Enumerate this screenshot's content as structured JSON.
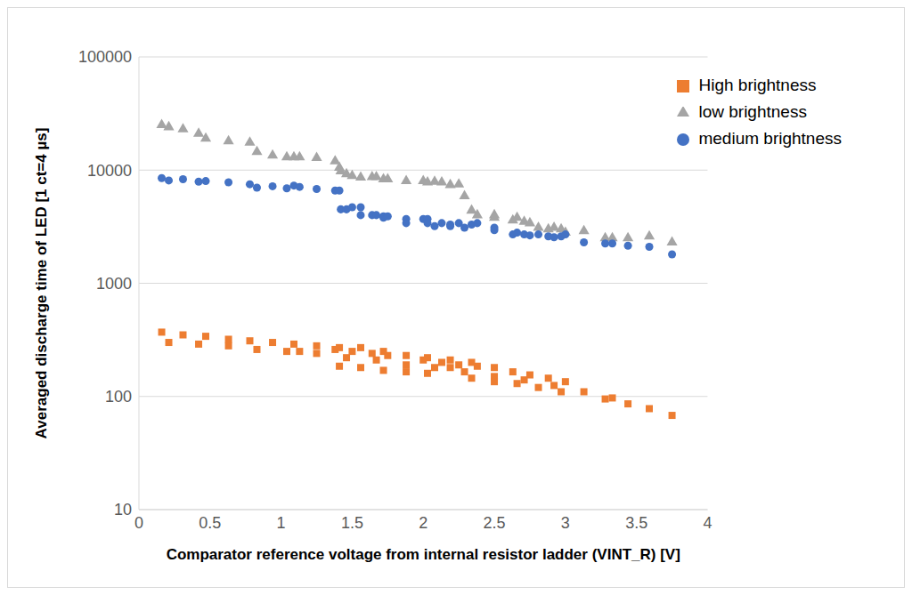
{
  "chart_data": {
    "type": "scatter",
    "x_label": "Comparator reference voltage from internal resistor ladder (VINT_R) [V]",
    "y_label": "Averaged discharge time of LED [1 ct=4 µs]",
    "xlim": [
      0,
      4
    ],
    "xticks": [
      0,
      0.5,
      1,
      1.5,
      2,
      2.5,
      3,
      3.5,
      4
    ],
    "ylim": [
      10,
      100000
    ],
    "yticks": [
      10,
      100,
      1000,
      10000,
      100000
    ],
    "log": "y",
    "grid": true,
    "legend": "upper right",
    "series": [
      {
        "name": "low brightness",
        "color": "#a5a5a5",
        "marker": "triangle",
        "x": [
          0.16,
          0.21,
          0.31,
          0.42,
          0.47,
          0.63,
          0.78,
          0.83,
          0.94,
          1.04,
          1.09,
          1.13,
          1.25,
          1.38,
          1.41,
          1.42,
          1.46,
          1.5,
          1.56,
          1.64,
          1.67,
          1.72,
          1.75,
          1.88,
          2.0,
          2.03,
          2.08,
          2.13,
          2.19,
          2.25,
          2.29,
          2.34,
          2.38,
          2.5,
          2.5,
          2.63,
          2.66,
          2.71,
          2.75,
          2.81,
          2.88,
          2.92,
          2.97,
          3.0,
          3.13,
          3.28,
          3.33,
          3.44,
          3.59,
          3.75
        ],
        "values": [
          25000,
          24000,
          23000,
          21000,
          19000,
          18000,
          17500,
          14500,
          13500,
          13000,
          13000,
          13000,
          12800,
          12000,
          10500,
          9800,
          9200,
          8900,
          8600,
          8700,
          8700,
          8300,
          8300,
          8000,
          8000,
          7800,
          7900,
          7800,
          7400,
          7500,
          5900,
          4400,
          4000,
          4000,
          3800,
          3600,
          3800,
          3500,
          3400,
          3100,
          3000,
          3100,
          3000,
          2800,
          2900,
          2500,
          2500,
          2500,
          2600,
          2300
        ]
      },
      {
        "name": "medium brightness",
        "color": "#4472c4",
        "marker": "circle",
        "x": [
          0.16,
          0.21,
          0.31,
          0.42,
          0.47,
          0.63,
          0.78,
          0.83,
          0.94,
          1.04,
          1.09,
          1.13,
          1.25,
          1.38,
          1.41,
          1.42,
          1.46,
          1.5,
          1.56,
          1.56,
          1.64,
          1.67,
          1.72,
          1.72,
          1.75,
          1.88,
          1.88,
          2.0,
          2.03,
          2.03,
          2.08,
          2.13,
          2.19,
          2.19,
          2.25,
          2.29,
          2.34,
          2.38,
          2.5,
          2.5,
          2.63,
          2.66,
          2.71,
          2.75,
          2.81,
          2.88,
          2.92,
          2.97,
          3.0,
          3.13,
          3.28,
          3.33,
          3.44,
          3.59,
          3.75
        ],
        "values": [
          8500,
          8100,
          8300,
          7900,
          8000,
          7800,
          7500,
          7000,
          7200,
          6900,
          7300,
          7100,
          6800,
          6600,
          6600,
          4500,
          4500,
          4700,
          4700,
          4000,
          4000,
          4000,
          3900,
          3800,
          3900,
          3700,
          3400,
          3700,
          3700,
          3400,
          3200,
          3400,
          3200,
          3300,
          3400,
          3100,
          3300,
          3400,
          3100,
          2950,
          2700,
          2800,
          2700,
          2650,
          2700,
          2600,
          2550,
          2600,
          2700,
          2300,
          2250,
          2250,
          2150,
          2100,
          1800
        ]
      },
      {
        "name": "High brightness",
        "color": "#ed7d31",
        "marker": "square",
        "x": [
          0.16,
          0.21,
          0.31,
          0.42,
          0.47,
          0.63,
          0.63,
          0.78,
          0.83,
          0.94,
          1.04,
          1.09,
          1.13,
          1.25,
          1.25,
          1.38,
          1.41,
          1.41,
          1.46,
          1.5,
          1.56,
          1.56,
          1.64,
          1.67,
          1.72,
          1.72,
          1.75,
          1.88,
          1.88,
          1.88,
          2.0,
          2.03,
          2.03,
          2.08,
          2.13,
          2.19,
          2.19,
          2.25,
          2.29,
          2.34,
          2.34,
          2.38,
          2.5,
          2.5,
          2.5,
          2.63,
          2.66,
          2.71,
          2.75,
          2.81,
          2.88,
          2.92,
          2.97,
          3.0,
          3.13,
          3.28,
          3.33,
          3.44,
          3.59,
          3.75
        ],
        "values": [
          370,
          300,
          350,
          290,
          340,
          320,
          280,
          310,
          260,
          300,
          250,
          290,
          250,
          280,
          240,
          260,
          270,
          185,
          220,
          250,
          270,
          180,
          240,
          210,
          250,
          170,
          230,
          230,
          190,
          165,
          210,
          220,
          160,
          180,
          200,
          210,
          180,
          190,
          165,
          200,
          145,
          185,
          180,
          150,
          135,
          165,
          130,
          140,
          155,
          120,
          145,
          125,
          110,
          135,
          110,
          95,
          97,
          86,
          78,
          68
        ]
      }
    ]
  }
}
